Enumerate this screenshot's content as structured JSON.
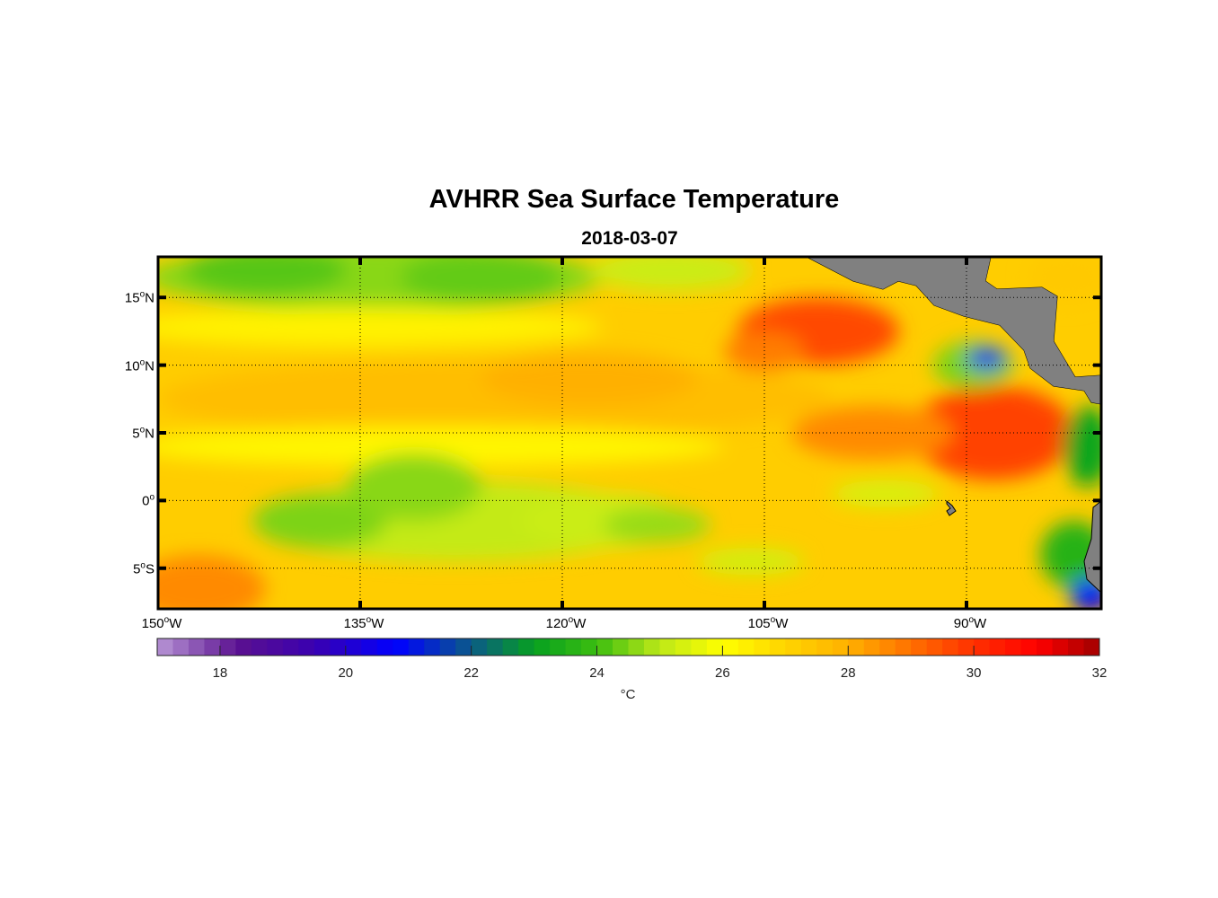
{
  "chart_data": {
    "type": "heatmap",
    "title": "AVHRR Sea Surface Temperature",
    "subtitle": "2018-03-07",
    "lon_range": [
      -150,
      -80
    ],
    "lat_range": [
      -8,
      18
    ],
    "x_ticks": [
      {
        "value": -150,
        "num": "150",
        "deg": "o",
        "hemi": "W"
      },
      {
        "value": -135,
        "num": "135",
        "deg": "o",
        "hemi": "W"
      },
      {
        "value": -120,
        "num": "120",
        "deg": "o",
        "hemi": "W"
      },
      {
        "value": -105,
        "num": "105",
        "deg": "o",
        "hemi": "W"
      },
      {
        "value": -90,
        "num": "90",
        "deg": "o",
        "hemi": "W"
      }
    ],
    "y_ticks": [
      {
        "value": 15,
        "num": "15",
        "deg": "o",
        "hemi": "N"
      },
      {
        "value": 10,
        "num": "10",
        "deg": "o",
        "hemi": "N"
      },
      {
        "value": 5,
        "num": "5",
        "deg": "o",
        "hemi": "N"
      },
      {
        "value": 0,
        "num": "0",
        "deg": "o",
        "hemi": ""
      },
      {
        "value": -5,
        "num": "5",
        "deg": "o",
        "hemi": "S"
      }
    ],
    "grid": true,
    "colorbar": {
      "range": [
        17,
        32
      ],
      "ticks": [
        "18",
        "20",
        "22",
        "24",
        "26",
        "28",
        "30",
        "32"
      ],
      "tick_values": [
        18,
        20,
        22,
        24,
        26,
        28,
        30,
        32
      ],
      "step": 0.25,
      "units": "°C",
      "placement": "bottom"
    },
    "colormap": [
      [
        17,
        "#b896d6"
      ],
      [
        18.3,
        "#5a1090"
      ],
      [
        19.5,
        "#3a00b0"
      ],
      [
        20.8,
        "#0000ff"
      ],
      [
        22,
        "#0b5a88"
      ],
      [
        23,
        "#06a020"
      ],
      [
        24,
        "#3cbe10"
      ],
      [
        25,
        "#bde818"
      ],
      [
        26,
        "#ffff00"
      ],
      [
        27,
        "#ffd400"
      ],
      [
        28,
        "#ffb000"
      ],
      [
        29,
        "#ff7000"
      ],
      [
        30,
        "#ff3000"
      ],
      [
        31,
        "#ff0000"
      ],
      [
        32,
        "#a00000"
      ]
    ],
    "background_sst": 27.2,
    "sst_features": [
      {
        "lon": -134,
        "lat": 16.5,
        "rlon": 17,
        "rlat": 2.5,
        "t": 24.6
      },
      {
        "lon": -142,
        "lat": 17,
        "rlon": 6,
        "rlat": 1.8,
        "t": 24.2
      },
      {
        "lon": -126,
        "lat": 16.5,
        "rlon": 6,
        "rlat": 2,
        "t": 24.3
      },
      {
        "lon": -112,
        "lat": 17,
        "rlon": 6,
        "rlat": 1.5,
        "t": 25.2
      },
      {
        "lon": -135,
        "lat": 12.8,
        "rlon": 18,
        "rlat": 1.5,
        "t": 26.3
      },
      {
        "lon": -125,
        "lat": 7.5,
        "rlon": 25,
        "rlat": 3,
        "t": 27.6
      },
      {
        "lon": -130,
        "lat": 4,
        "rlon": 22,
        "rlat": 1.5,
        "t": 26.2
      },
      {
        "lon": -128,
        "lat": -1.5,
        "rlon": 15,
        "rlat": 3,
        "t": 25.1
      },
      {
        "lon": -138,
        "lat": -1.5,
        "rlon": 5,
        "rlat": 2,
        "t": 24.5
      },
      {
        "lon": -131,
        "lat": 1,
        "rlon": 5,
        "rlat": 2.5,
        "t": 24.6
      },
      {
        "lon": -117,
        "lat": -1.5,
        "rlon": 6,
        "rlat": 2,
        "t": 25.2
      },
      {
        "lon": -113,
        "lat": -1.8,
        "rlon": 4,
        "rlat": 1.3,
        "t": 24.7
      },
      {
        "lon": -106,
        "lat": -4.5,
        "rlon": 4,
        "rlat": 1,
        "t": 25.3
      },
      {
        "lon": -96,
        "lat": 0.5,
        "rlon": 4,
        "rlat": 1,
        "t": 25.4
      },
      {
        "lon": -147,
        "lat": -6.5,
        "rlon": 5,
        "rlat": 2.5,
        "t": 28.6
      },
      {
        "lon": -101,
        "lat": 12.5,
        "rlon": 6,
        "rlat": 2.5,
        "t": 29.6
      },
      {
        "lon": -105,
        "lat": 11,
        "rlon": 3,
        "rlat": 1.5,
        "t": 28.8
      },
      {
        "lon": -88,
        "lat": 5,
        "rlon": 6,
        "rlat": 3.5,
        "t": 29.7
      },
      {
        "lon": -97,
        "lat": 5,
        "rlon": 6,
        "rlat": 2,
        "t": 28.6
      },
      {
        "lon": -89.5,
        "lat": 10,
        "rlon": 3,
        "rlat": 1.8,
        "t": 24.5
      },
      {
        "lon": -88.5,
        "lat": 10.5,
        "rlon": 1.5,
        "rlat": 0.8,
        "t": 21
      },
      {
        "lon": -81,
        "lat": 4,
        "rlon": 1.8,
        "rlat": 3,
        "t": 23.2
      },
      {
        "lon": -82,
        "lat": -4,
        "rlon": 2.5,
        "rlat": 2.5,
        "t": 23.6
      },
      {
        "lon": -80.8,
        "lat": -7,
        "rlon": 1.5,
        "rlat": 1.2,
        "t": 20.8
      },
      {
        "lon": -82.5,
        "lat": 16.5,
        "rlon": 3,
        "rlat": 2,
        "t": 27.3
      },
      {
        "lon": -118,
        "lat": 9,
        "rlon": 8,
        "rlat": 2,
        "t": 28
      }
    ]
  }
}
